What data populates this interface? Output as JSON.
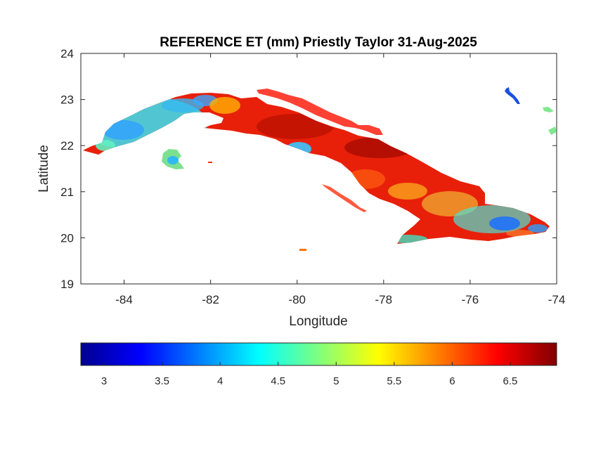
{
  "chart_data": {
    "type": "heatmap",
    "title": "REFERENCE ET (mm) Priestly Taylor 31-Aug-2025",
    "xlabel": "Longitude",
    "ylabel": "Latitude",
    "xlim": [
      -85,
      -74
    ],
    "ylim": [
      19,
      24
    ],
    "x_ticks": [
      -84,
      -82,
      -80,
      -78,
      -76,
      -74
    ],
    "y_ticks": [
      19,
      20,
      21,
      22,
      23,
      24
    ],
    "x_tick_labels": [
      "-84",
      "-82",
      "-80",
      "-78",
      "-76",
      "-74"
    ],
    "y_tick_labels": [
      "19",
      "20",
      "21",
      "22",
      "23",
      "24"
    ],
    "colormap": "jet",
    "colorbar": {
      "orientation": "horizontal",
      "position": "bottom",
      "clim": [
        2.8,
        6.9
      ],
      "ticks": [
        3,
        3.5,
        4,
        4.5,
        5,
        5.5,
        6,
        6.5
      ],
      "tick_labels": [
        "3",
        "3.5",
        "4",
        "4.5",
        "5",
        "5.5",
        "6",
        "6.5"
      ]
    },
    "region_values": [
      {
        "lon": -84.5,
        "lat": 22.0,
        "value": 4.6
      },
      {
        "lon": -83.8,
        "lat": 22.5,
        "value": 4.4
      },
      {
        "lon": -83.0,
        "lat": 22.8,
        "value": 4.5
      },
      {
        "lon": -82.3,
        "lat": 22.9,
        "value": 4.6
      },
      {
        "lon": -82.8,
        "lat": 21.7,
        "value": 4.9
      },
      {
        "lon": -81.5,
        "lat": 22.8,
        "value": 6.3
      },
      {
        "lon": -81.0,
        "lat": 22.5,
        "value": 6.7
      },
      {
        "lon": -80.0,
        "lat": 22.0,
        "value": 4.8
      },
      {
        "lon": -79.5,
        "lat": 22.3,
        "value": 6.5
      },
      {
        "lon": -78.5,
        "lat": 21.9,
        "value": 6.8
      },
      {
        "lon": -77.8,
        "lat": 21.5,
        "value": 6.6
      },
      {
        "lon": -77.0,
        "lat": 20.9,
        "value": 5.6
      },
      {
        "lon": -76.5,
        "lat": 20.6,
        "value": 4.9
      },
      {
        "lon": -75.2,
        "lat": 20.3,
        "value": 3.9
      },
      {
        "lon": -74.6,
        "lat": 20.2,
        "value": 4.3
      },
      {
        "lon": -76.8,
        "lat": 20.0,
        "value": 6.3
      },
      {
        "lon": -75.0,
        "lat": 23.0,
        "value": 3.6
      },
      {
        "lon": -74.2,
        "lat": 22.7,
        "value": 5.0
      }
    ]
  }
}
